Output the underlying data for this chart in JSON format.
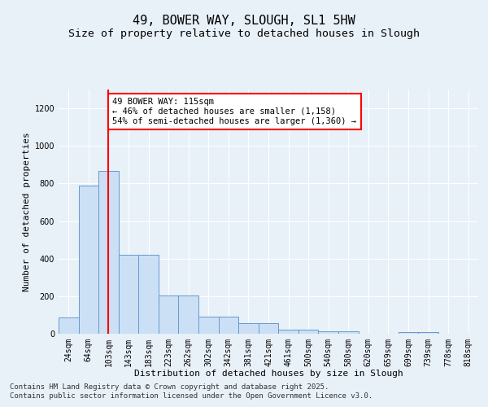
{
  "title_line1": "49, BOWER WAY, SLOUGH, SL1 5HW",
  "title_line2": "Size of property relative to detached houses in Slough",
  "xlabel": "Distribution of detached houses by size in Slough",
  "ylabel": "Number of detached properties",
  "categories": [
    "24sqm",
    "64sqm",
    "103sqm",
    "143sqm",
    "183sqm",
    "223sqm",
    "262sqm",
    "302sqm",
    "342sqm",
    "381sqm",
    "421sqm",
    "461sqm",
    "500sqm",
    "540sqm",
    "580sqm",
    "620sqm",
    "659sqm",
    "699sqm",
    "739sqm",
    "778sqm",
    "818sqm"
  ],
  "values": [
    85,
    790,
    865,
    420,
    420,
    205,
    205,
    90,
    90,
    55,
    55,
    20,
    20,
    15,
    15,
    0,
    0,
    10,
    10,
    0,
    0
  ],
  "bar_color": "#cce0f5",
  "bar_edge_color": "#6699cc",
  "red_line_x": 2,
  "annotation_text": "49 BOWER WAY: 115sqm\n← 46% of detached houses are smaller (1,158)\n54% of semi-detached houses are larger (1,360) →",
  "annotation_box_color": "white",
  "annotation_box_edge": "red",
  "ylim": [
    0,
    1300
  ],
  "yticks": [
    0,
    200,
    400,
    600,
    800,
    1000,
    1200
  ],
  "footer_line1": "Contains HM Land Registry data © Crown copyright and database right 2025.",
  "footer_line2": "Contains public sector information licensed under the Open Government Licence v3.0.",
  "background_color": "#e8f0f8",
  "plot_bg_color": "#e8f0f8",
  "title_fontsize": 11,
  "subtitle_fontsize": 9.5,
  "axis_label_fontsize": 8,
  "tick_fontsize": 7,
  "annot_fontsize": 7.5,
  "footer_fontsize": 6.5
}
